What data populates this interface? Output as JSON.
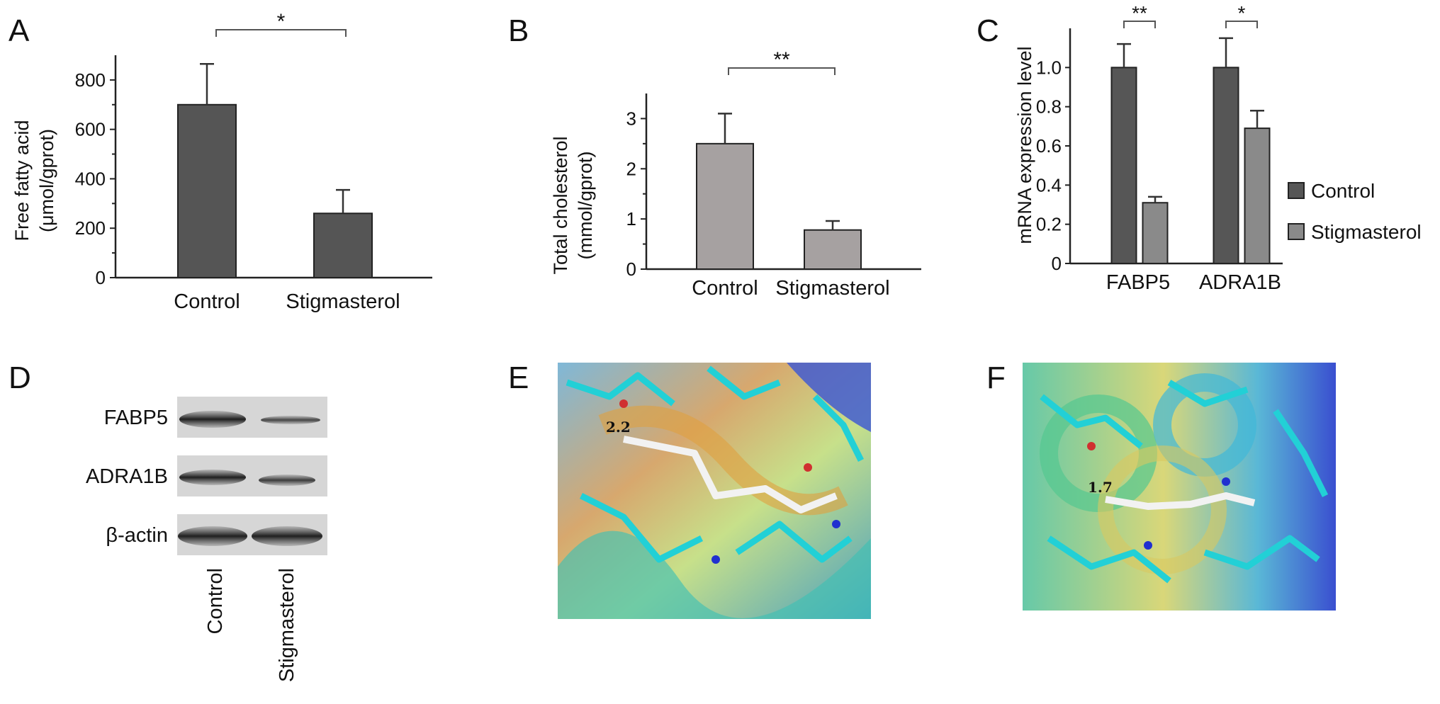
{
  "panels": {
    "a": "A",
    "b": "B",
    "c": "C",
    "d": "D",
    "e": "E",
    "f": "F"
  },
  "colors": {
    "bar_dark": "#555555",
    "bar_gray": "#a6a1a1",
    "bar_c_control": "#565656",
    "bar_c_stig": "#8a8a8a"
  },
  "chart_data": [
    {
      "panel": "A",
      "type": "bar",
      "categories": [
        "Control",
        "Stigmasterol"
      ],
      "values": [
        700,
        260
      ],
      "errors": [
        165,
        95
      ],
      "ylabel": "Free fatty acid",
      "ylabel_unit": "(μmol/gprot)",
      "ylim": [
        0,
        900
      ],
      "yticks": [
        0,
        200,
        400,
        600,
        800
      ],
      "significance": "*",
      "grid": false
    },
    {
      "panel": "B",
      "type": "bar",
      "categories": [
        "Control",
        "Stigmasterol"
      ],
      "values": [
        2.5,
        0.78
      ],
      "errors": [
        0.6,
        0.18
      ],
      "ylabel": "Total cholesterol",
      "ylabel_unit": "(mmol/gprot)",
      "ylim": [
        0,
        3.5
      ],
      "yticks": [
        0,
        1,
        2,
        3
      ],
      "significance": "**",
      "grid": false
    },
    {
      "panel": "C",
      "type": "bar",
      "categories": [
        "FABP5",
        "ADRA1B"
      ],
      "series": [
        {
          "name": "Control",
          "values": [
            1.0,
            1.0
          ],
          "errors": [
            0.12,
            0.15
          ]
        },
        {
          "name": "Stigmasterol",
          "values": [
            0.31,
            0.69
          ],
          "errors": [
            0.03,
            0.09
          ]
        }
      ],
      "ylabel": "mRNA expression level",
      "ylim": [
        0,
        1.2
      ],
      "yticks": [
        "0",
        "0.2",
        "0.4",
        "0.6",
        "0.8",
        "1.0"
      ],
      "significance": [
        "**",
        "*"
      ],
      "legend_position": "right",
      "grid": false
    }
  ],
  "blot": {
    "rows": [
      "FABP5",
      "ADRA1B",
      "β-actin"
    ],
    "columns": [
      "Control",
      "Stigmasterol"
    ]
  },
  "docking": {
    "e_distance": "2.2",
    "f_distance": "1.7"
  }
}
